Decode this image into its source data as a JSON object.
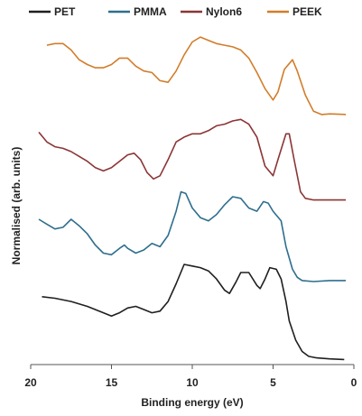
{
  "chart_data": {
    "type": "line",
    "xlabel": "Binding energy (eV)",
    "ylabel": "Normalised (arb. units)",
    "xlim": [
      20,
      0
    ],
    "x_reversed": true,
    "yticks_shown": false,
    "xticks": [
      20,
      15,
      10,
      5,
      0
    ],
    "grid": false,
    "legend_position": "top",
    "series": [
      {
        "name": "PET",
        "color": "#1f1f1f",
        "points": [
          [
            19.3,
            1.95
          ],
          [
            18.5,
            1.9
          ],
          [
            17.5,
            1.8
          ],
          [
            16.5,
            1.65
          ],
          [
            15.5,
            1.45
          ],
          [
            15.0,
            1.35
          ],
          [
            14.5,
            1.45
          ],
          [
            14.0,
            1.6
          ],
          [
            13.5,
            1.65
          ],
          [
            13.0,
            1.55
          ],
          [
            12.5,
            1.45
          ],
          [
            12.0,
            1.5
          ],
          [
            11.5,
            1.8
          ],
          [
            11.0,
            2.35
          ],
          [
            10.5,
            2.95
          ],
          [
            10.0,
            2.9
          ],
          [
            9.5,
            2.85
          ],
          [
            9.0,
            2.75
          ],
          [
            8.5,
            2.5
          ],
          [
            8.0,
            2.15
          ],
          [
            7.7,
            2.05
          ],
          [
            7.3,
            2.4
          ],
          [
            7.0,
            2.7
          ],
          [
            6.5,
            2.7
          ],
          [
            6.0,
            2.3
          ],
          [
            5.8,
            2.2
          ],
          [
            5.5,
            2.5
          ],
          [
            5.2,
            2.85
          ],
          [
            4.8,
            2.8
          ],
          [
            4.5,
            2.5
          ],
          [
            4.2,
            1.8
          ],
          [
            4.0,
            1.2
          ],
          [
            3.6,
            0.6
          ],
          [
            3.2,
            0.25
          ],
          [
            2.8,
            0.1
          ],
          [
            2.3,
            0.05
          ],
          [
            1.5,
            0.02
          ],
          [
            0.6,
            0.0
          ]
        ]
      },
      {
        "name": "PMMA",
        "color": "#2e6e8e",
        "points": [
          [
            19.5,
            4.35
          ],
          [
            19.0,
            4.2
          ],
          [
            18.5,
            4.05
          ],
          [
            18.0,
            4.1
          ],
          [
            17.5,
            4.35
          ],
          [
            17.0,
            4.15
          ],
          [
            16.5,
            3.9
          ],
          [
            16.0,
            3.55
          ],
          [
            15.5,
            3.3
          ],
          [
            15.0,
            3.25
          ],
          [
            14.5,
            3.45
          ],
          [
            14.2,
            3.55
          ],
          [
            14.0,
            3.45
          ],
          [
            13.5,
            3.3
          ],
          [
            13.0,
            3.4
          ],
          [
            12.5,
            3.6
          ],
          [
            12.0,
            3.5
          ],
          [
            11.5,
            3.85
          ],
          [
            11.0,
            4.6
          ],
          [
            10.7,
            5.2
          ],
          [
            10.4,
            5.15
          ],
          [
            10.0,
            4.7
          ],
          [
            9.5,
            4.4
          ],
          [
            9.0,
            4.3
          ],
          [
            8.5,
            4.5
          ],
          [
            8.0,
            4.8
          ],
          [
            7.5,
            5.05
          ],
          [
            7.0,
            5.0
          ],
          [
            6.5,
            4.7
          ],
          [
            6.0,
            4.6
          ],
          [
            5.6,
            4.9
          ],
          [
            5.3,
            4.85
          ],
          [
            5.0,
            4.6
          ],
          [
            4.5,
            4.3
          ],
          [
            4.2,
            3.5
          ],
          [
            3.8,
            2.8
          ],
          [
            3.5,
            2.55
          ],
          [
            3.2,
            2.45
          ],
          [
            2.5,
            2.42
          ],
          [
            1.5,
            2.45
          ],
          [
            0.5,
            2.45
          ]
        ]
      },
      {
        "name": "Nylon6",
        "color": "#8b3535",
        "points": [
          [
            19.5,
            7.05
          ],
          [
            19.0,
            6.75
          ],
          [
            18.5,
            6.6
          ],
          [
            18.0,
            6.55
          ],
          [
            17.5,
            6.45
          ],
          [
            17.0,
            6.3
          ],
          [
            16.5,
            6.15
          ],
          [
            16.0,
            5.95
          ],
          [
            15.5,
            5.85
          ],
          [
            15.0,
            5.95
          ],
          [
            14.5,
            6.15
          ],
          [
            14.0,
            6.35
          ],
          [
            13.6,
            6.4
          ],
          [
            13.2,
            6.2
          ],
          [
            12.8,
            5.8
          ],
          [
            12.4,
            5.6
          ],
          [
            12.0,
            5.7
          ],
          [
            11.5,
            6.2
          ],
          [
            11.0,
            6.75
          ],
          [
            10.5,
            6.9
          ],
          [
            10.0,
            7.0
          ],
          [
            9.5,
            7.0
          ],
          [
            9.0,
            7.1
          ],
          [
            8.5,
            7.25
          ],
          [
            8.0,
            7.3
          ],
          [
            7.5,
            7.4
          ],
          [
            7.0,
            7.45
          ],
          [
            6.5,
            7.3
          ],
          [
            6.0,
            6.9
          ],
          [
            5.5,
            6.0
          ],
          [
            5.0,
            5.7
          ],
          [
            4.7,
            6.2
          ],
          [
            4.2,
            7.0
          ],
          [
            4.0,
            7.0
          ],
          [
            3.7,
            6.2
          ],
          [
            3.3,
            5.2
          ],
          [
            3.0,
            5.0
          ],
          [
            2.5,
            4.95
          ],
          [
            1.5,
            4.95
          ],
          [
            0.5,
            4.95
          ]
        ]
      },
      {
        "name": "PEEK",
        "color": "#d27d2a",
        "points": [
          [
            19.0,
            9.75
          ],
          [
            18.5,
            9.8
          ],
          [
            18.0,
            9.8
          ],
          [
            17.5,
            9.6
          ],
          [
            17.0,
            9.3
          ],
          [
            16.5,
            9.15
          ],
          [
            16.0,
            9.05
          ],
          [
            15.5,
            9.05
          ],
          [
            15.0,
            9.15
          ],
          [
            14.5,
            9.35
          ],
          [
            14.0,
            9.35
          ],
          [
            13.5,
            9.1
          ],
          [
            13.0,
            8.95
          ],
          [
            12.5,
            8.9
          ],
          [
            12.0,
            8.65
          ],
          [
            11.5,
            8.6
          ],
          [
            11.0,
            8.95
          ],
          [
            10.5,
            9.45
          ],
          [
            10.0,
            9.85
          ],
          [
            9.5,
            10.0
          ],
          [
            9.0,
            9.9
          ],
          [
            8.5,
            9.8
          ],
          [
            8.0,
            9.75
          ],
          [
            7.5,
            9.7
          ],
          [
            7.0,
            9.6
          ],
          [
            6.5,
            9.35
          ],
          [
            6.0,
            8.9
          ],
          [
            5.5,
            8.4
          ],
          [
            5.0,
            8.05
          ],
          [
            4.7,
            8.3
          ],
          [
            4.3,
            9.0
          ],
          [
            3.8,
            9.3
          ],
          [
            3.5,
            8.95
          ],
          [
            3.0,
            8.2
          ],
          [
            2.5,
            7.7
          ],
          [
            2.0,
            7.6
          ],
          [
            1.5,
            7.62
          ],
          [
            0.5,
            7.6
          ]
        ]
      }
    ]
  }
}
